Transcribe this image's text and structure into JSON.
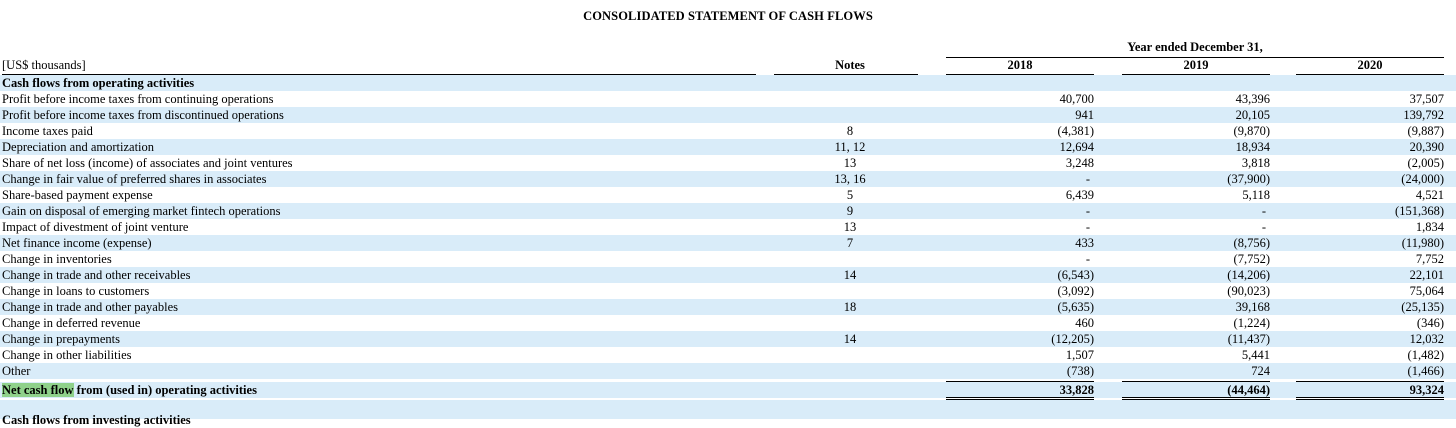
{
  "title": "CONSOLIDATED STATEMENT OF CASH FLOWS",
  "header": {
    "units": "[US$ thousands]",
    "notes": "Notes",
    "period": "Year ended December 31,",
    "years": [
      "2018",
      "2019",
      "2020"
    ]
  },
  "section": "Cash flows from operating activities",
  "rows": [
    {
      "label": "Profit before income taxes from continuing operations",
      "note": "",
      "v": [
        "40,700",
        "43,396",
        "37,507"
      ]
    },
    {
      "label": "Profit before income taxes from discontinued operations",
      "note": "",
      "v": [
        "941",
        "20,105",
        "139,792"
      ]
    },
    {
      "label": "Income taxes paid",
      "note": "8",
      "v": [
        "(4,381)",
        "(9,870)",
        "(9,887)"
      ]
    },
    {
      "label": "Depreciation and amortization",
      "note": "11, 12",
      "v": [
        "12,694",
        "18,934",
        "20,390"
      ]
    },
    {
      "label": "Share of net loss (income) of associates and joint ventures",
      "note": "13",
      "v": [
        "3,248",
        "3,818",
        "(2,005)"
      ]
    },
    {
      "label": "Change in fair value of preferred shares in associates",
      "note": "13, 16",
      "v": [
        "-",
        "(37,900)",
        "(24,000)"
      ]
    },
    {
      "label": "Share-based payment expense",
      "note": "5",
      "v": [
        "6,439",
        "5,118",
        "4,521"
      ]
    },
    {
      "label": "Gain on disposal of emerging market fintech operations",
      "note": "9",
      "v": [
        "-",
        "-",
        "(151,368)"
      ]
    },
    {
      "label": "Impact of divestment of joint venture",
      "note": "13",
      "v": [
        "-",
        "-",
        "1,834"
      ]
    },
    {
      "label": "Net finance income (expense)",
      "note": "7",
      "v": [
        "433",
        "(8,756)",
        "(11,980)"
      ]
    },
    {
      "label": "Change in inventories",
      "note": "",
      "v": [
        "-",
        "(7,752)",
        "7,752"
      ]
    },
    {
      "label": "Change in trade and other receivables",
      "note": "14",
      "v": [
        "(6,543)",
        "(14,206)",
        "22,101"
      ]
    },
    {
      "label": "Change in loans to customers",
      "note": "",
      "v": [
        "(3,092)",
        "(90,023)",
        "75,064"
      ]
    },
    {
      "label": "Change in trade and other payables",
      "note": "18",
      "v": [
        "(5,635)",
        "39,168",
        "(25,135)"
      ]
    },
    {
      "label": "Change in deferred revenue",
      "note": "",
      "v": [
        "460",
        "(1,224)",
        "(346)"
      ]
    },
    {
      "label": "Change in prepayments",
      "note": "14",
      "v": [
        "(12,205)",
        "(11,437)",
        "12,032"
      ]
    },
    {
      "label": "Change in other liabilities",
      "note": "",
      "v": [
        "1,507",
        "5,441",
        "(1,482)"
      ]
    },
    {
      "label": "Other",
      "note": "",
      "v": [
        "(738)",
        "724",
        "(1,466)"
      ]
    }
  ],
  "total": {
    "label_highlight": "Net cash flow",
    "label_rest": " from (used in) operating activities",
    "v": [
      "33,828",
      "(44,464)",
      "93,324"
    ]
  },
  "next_section": "Cash flows from investing activities"
}
